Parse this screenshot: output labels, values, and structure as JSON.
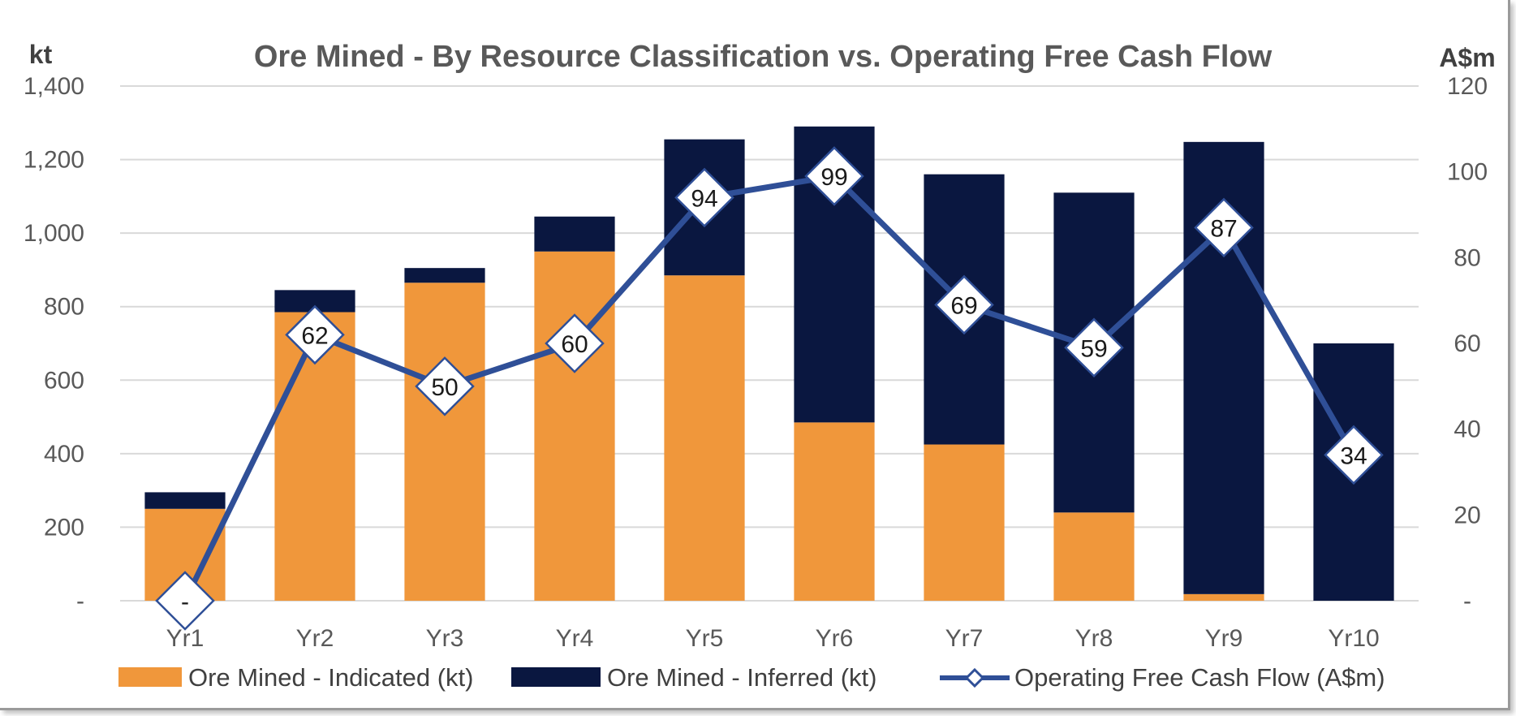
{
  "chart_data": {
    "type": "bar",
    "title": "Ore Mined - By Resource Classification vs. Operating Free Cash Flow",
    "categories": [
      "Yr1",
      "Yr2",
      "Yr3",
      "Yr4",
      "Yr5",
      "Yr6",
      "Yr7",
      "Yr8",
      "Yr9",
      "Yr10"
    ],
    "y_left": {
      "label": "kt",
      "ylim": [
        0,
        1400
      ],
      "ticks": [
        0,
        200,
        400,
        600,
        800,
        1000,
        1200,
        1400
      ],
      "tick_labels": [
        "-",
        "200",
        "400",
        "600",
        "800",
        "1,000",
        "1,200",
        "1,400"
      ]
    },
    "y_right": {
      "label": "A$m",
      "ylim": [
        0,
        120
      ],
      "ticks": [
        0,
        20,
        40,
        60,
        80,
        100,
        120
      ],
      "tick_labels": [
        "-",
        "20",
        "40",
        "60",
        "80",
        "100",
        "120"
      ]
    },
    "series": [
      {
        "name": "Ore Mined - Indicated (kt)",
        "type": "stacked-bar",
        "axis": "left",
        "color": "#F0973B",
        "values": [
          250,
          785,
          865,
          950,
          885,
          485,
          425,
          240,
          18,
          0
        ]
      },
      {
        "name": "Ore Mined - Inferred (kt)",
        "type": "stacked-bar",
        "axis": "left",
        "color": "#0A1740",
        "values": [
          45,
          60,
          40,
          95,
          370,
          805,
          735,
          870,
          1230,
          700
        ]
      },
      {
        "name": "Operating Free Cash Flow (A$m)",
        "type": "line",
        "axis": "right",
        "color": "#2F4F97",
        "values": [
          0,
          62,
          50,
          60,
          94,
          99,
          69,
          59,
          87,
          34
        ],
        "data_labels": [
          "-",
          "62",
          "50",
          "60",
          "94",
          "99",
          "69",
          "59",
          "87",
          "34"
        ]
      }
    ],
    "legend_position": "bottom",
    "grid": true
  }
}
